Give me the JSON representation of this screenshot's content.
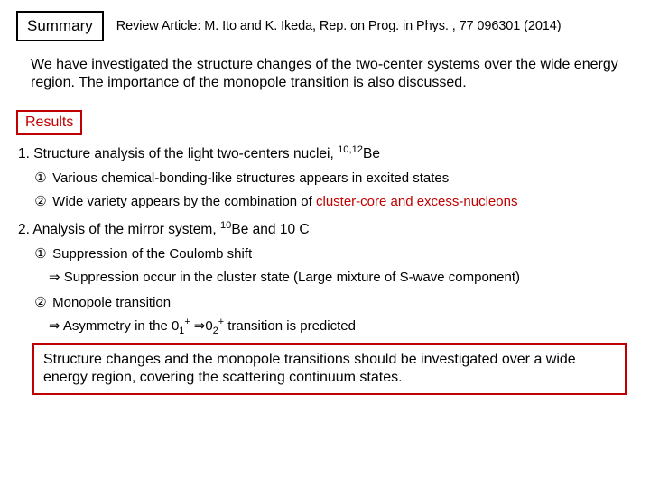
{
  "header": {
    "summary_label": "Summary",
    "review_line": "Review Article: M. Ito and K. Ikeda, Rep. on Prog. in Phys. , 77 096301 (2014)"
  },
  "intro": "We have investigated the structure changes of the two-center systems over the wide energy region. The importance of the monopole transition is also discussed.",
  "results_label": "Results",
  "sec1": {
    "title_pre": "1. Structure analysis of the light two-centers nuclei, ",
    "title_sup": "10,12",
    "title_post": "Be",
    "item1_circ": "①",
    "item1_text": " Various chemical-bonding-like structures appears in excited states",
    "item2_circ": "②",
    "item2_pre": " Wide variety appears by the combination of ",
    "item2_red": "cluster-core and excess-nucleons"
  },
  "sec2": {
    "title_pre": "2. Analysis of the mirror system, ",
    "title_sup": "10",
    "title_post": "Be and 10 C",
    "item1_circ": "①",
    "item1_text": " Suppression of the Coulomb shift",
    "arrow1_sym": "⇒",
    "arrow1_text": " Suppression occur in the cluster state (Large mixture of S-wave component)",
    "item2_circ": "②",
    "item2_text": " Monopole transition",
    "arrow2_sym": "⇒",
    "arrow2_pre": " Asymmetry in the 0",
    "arrow2_sub1": "1",
    "arrow2_sup1": "+",
    "arrow2_mid": " ⇒0",
    "arrow2_sub2": "2",
    "arrow2_sup2": "+",
    "arrow2_post": " transition is predicted"
  },
  "conclusion": "Structure changes and the monopole transitions should be investigated over a wide energy region, covering the scattering continuum states.",
  "colors": {
    "accent_red": "#c00000",
    "text": "#000000",
    "bg": "#ffffff"
  }
}
